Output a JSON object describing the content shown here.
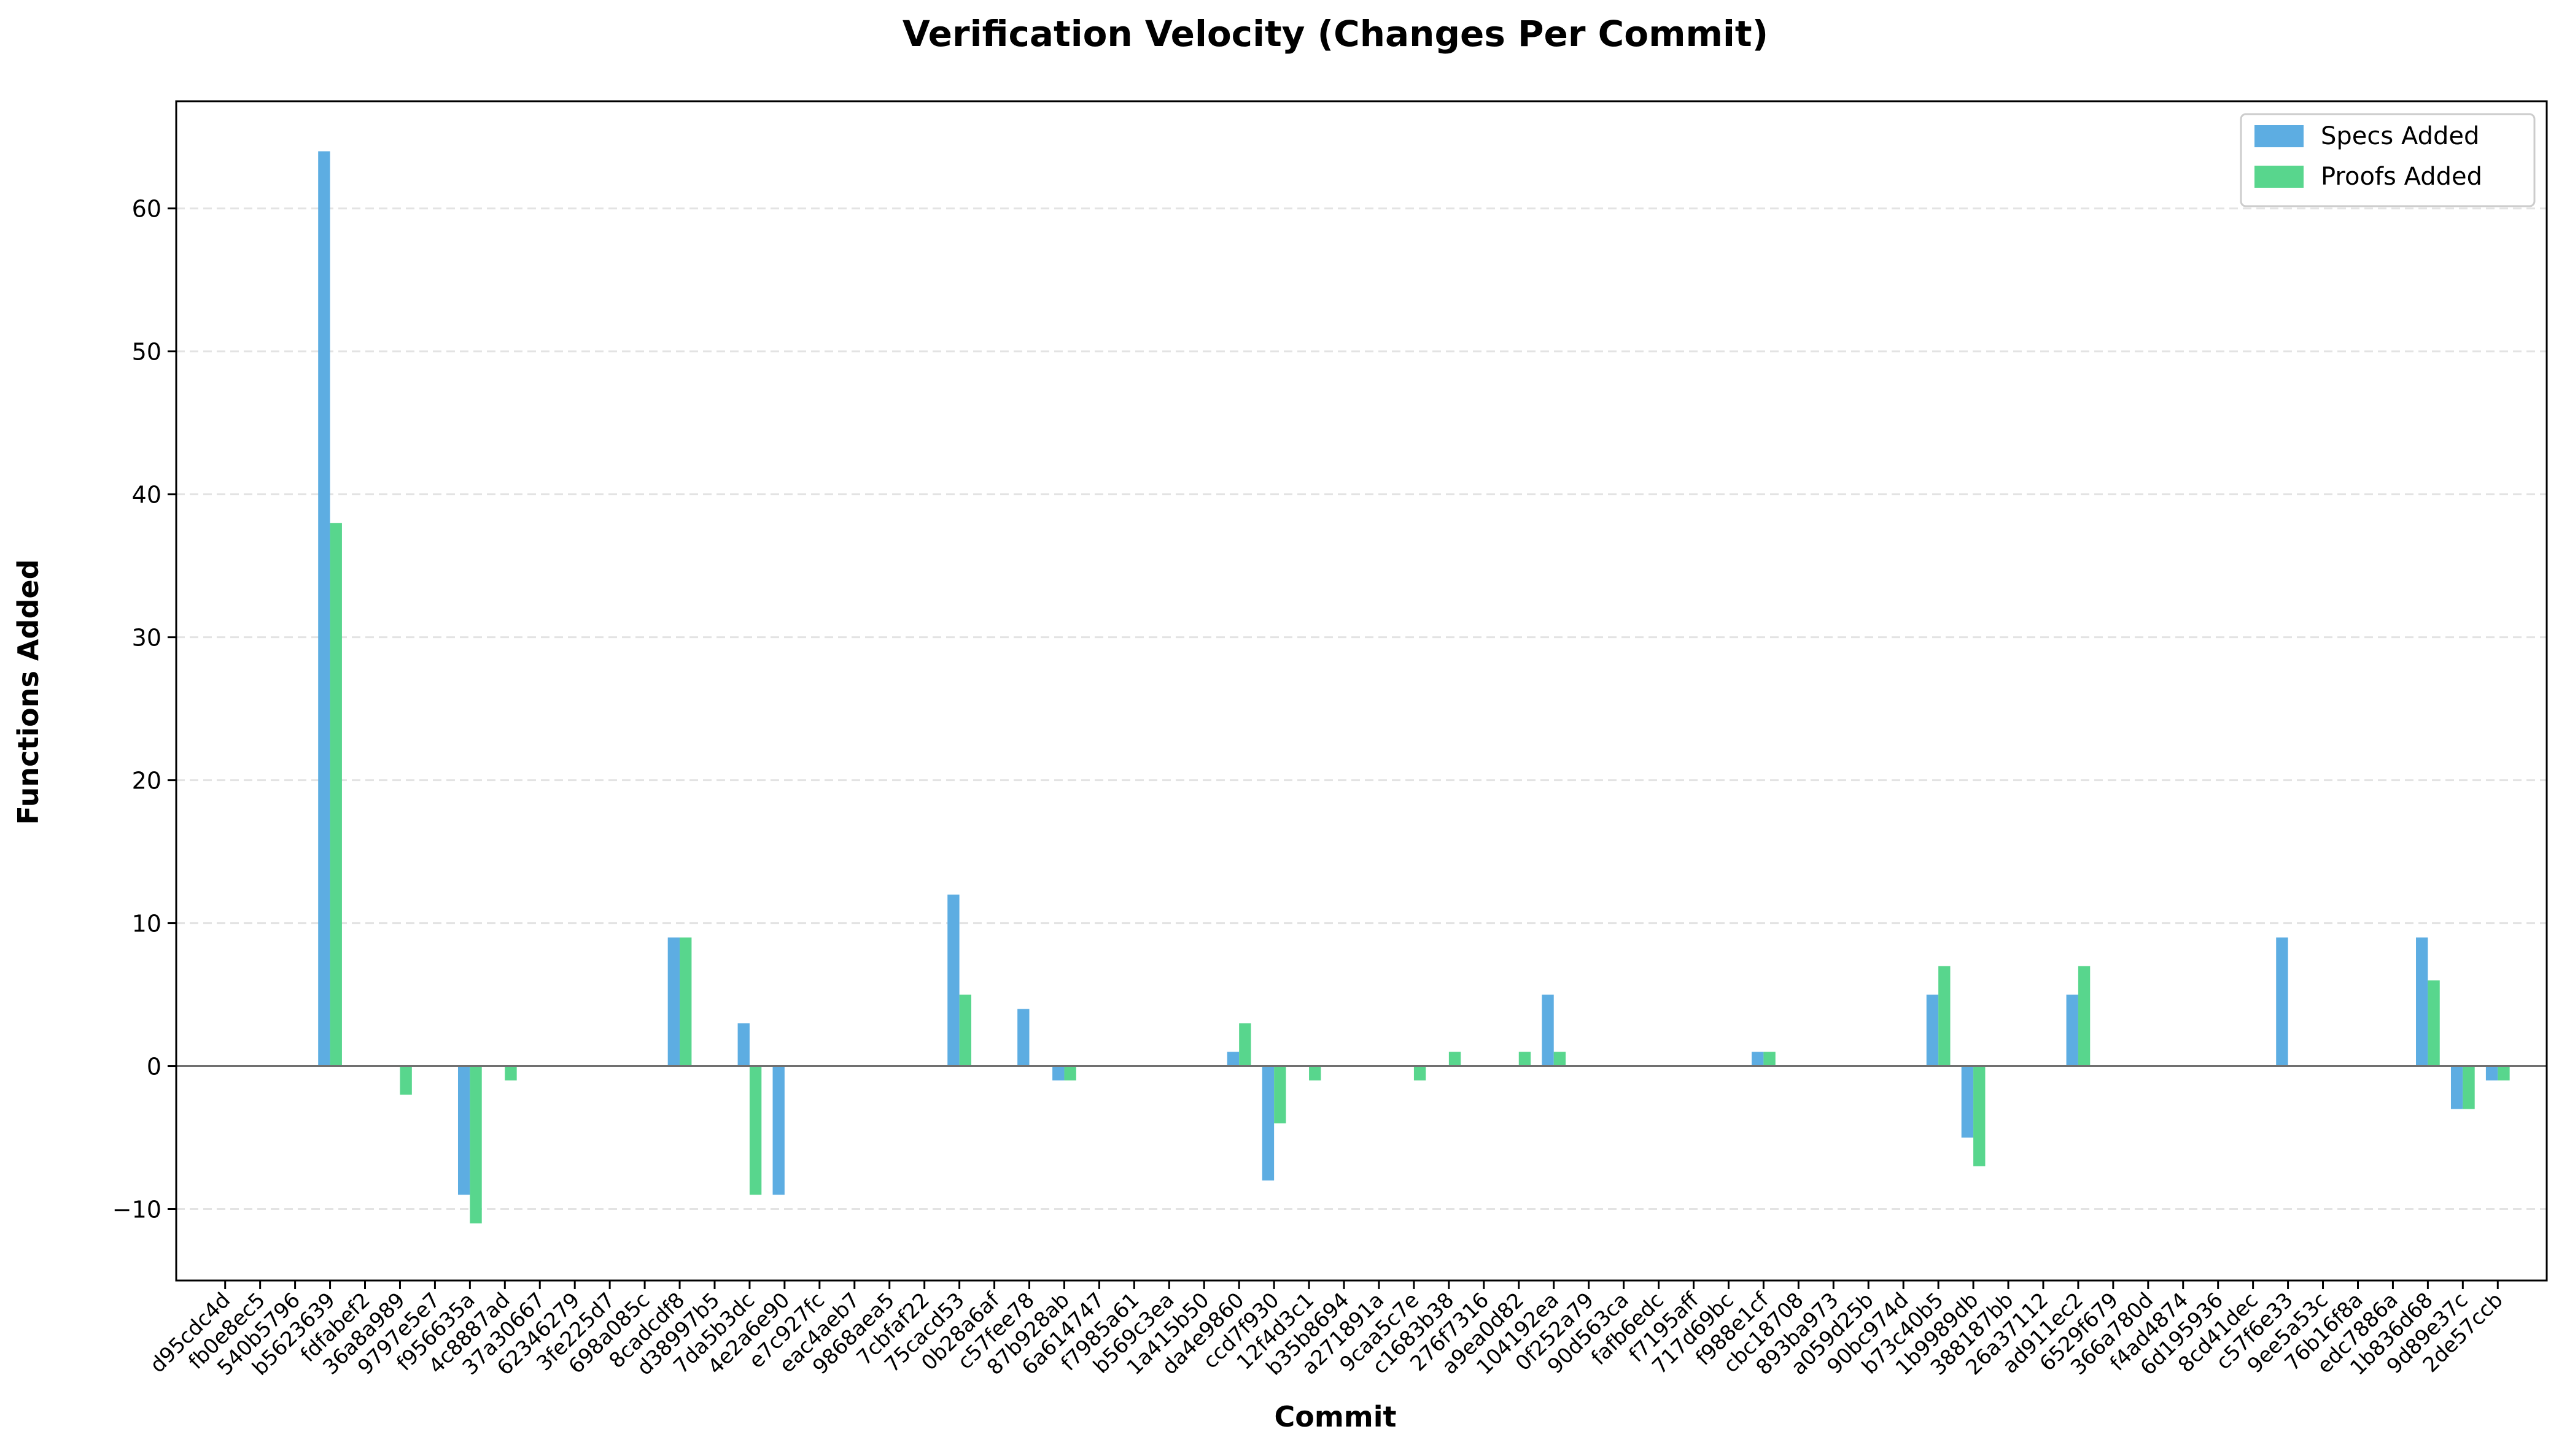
{
  "chart_data": {
    "type": "bar",
    "title": "Verification Velocity (Changes Per Commit)",
    "xlabel": "Commit",
    "ylabel": "Functions Added",
    "ylim": [
      -15,
      67.5
    ],
    "yticks": [
      -10,
      0,
      10,
      20,
      30,
      40,
      50,
      60
    ],
    "ytick_labels": [
      "−10",
      "0",
      "10",
      "20",
      "30",
      "40",
      "50",
      "60"
    ],
    "grid": "y-dashed",
    "legend_position": "top-right",
    "categories": [
      "d95cdc4d",
      "fb0e8ec5",
      "540b5796",
      "b5623639",
      "fdfabef2",
      "36a8a989",
      "9797e5e7",
      "f956635a",
      "4c8887ad",
      "37a30667",
      "62346279",
      "3fe225d7",
      "698a085c",
      "8cadcdf8",
      "d38997b5",
      "7da5b3dc",
      "4e2a6e90",
      "e7c927fc",
      "eac4aeb7",
      "9868aea5",
      "7cbfaf22",
      "75cacd53",
      "0b28a6af",
      "c57fee78",
      "87b928ab",
      "6a614747",
      "f7985a61",
      "b569c3ea",
      "1a415b50",
      "da4e9860",
      "ccd7f930",
      "12f4d3c1",
      "b35b8694",
      "a271891a",
      "9caa5c7e",
      "c1683b38",
      "276f7316",
      "a9ea0d82",
      "104192ea",
      "0f252a79",
      "90d563ca",
      "fafb6edc",
      "f7195aff",
      "717d69bc",
      "f988e1cf",
      "cbc18708",
      "893ba973",
      "a059d25b",
      "90bc974d",
      "b73c40b5",
      "1b9989db",
      "388187bb",
      "26a37112",
      "ad911ec2",
      "6529f679",
      "366a780d",
      "f4ad4874",
      "6d195936",
      "8cd41dec",
      "c57f6e33",
      "9ee5a53c",
      "76b16f8a",
      "edc7886a",
      "1b836d68",
      "9d89e37c",
      "2de57ccb"
    ],
    "series": [
      {
        "name": "Specs Added",
        "color": "#5dade2",
        "values": [
          0,
          0,
          0,
          64,
          0,
          0,
          0,
          -9,
          0,
          0,
          0,
          0,
          0,
          9,
          0,
          3,
          -9,
          0,
          0,
          0,
          0,
          12,
          0,
          4,
          -1,
          0,
          0,
          0,
          0,
          1,
          -8,
          0,
          0,
          0,
          0,
          0,
          0,
          0,
          5,
          0,
          0,
          0,
          0,
          0,
          1,
          0,
          0,
          0,
          0,
          5,
          -5,
          0,
          0,
          5,
          0,
          0,
          0,
          0,
          0,
          9,
          0,
          0,
          0,
          9,
          -3,
          -1
        ]
      },
      {
        "name": "Proofs Added",
        "color": "#58d68d",
        "values": [
          0,
          0,
          0,
          38,
          0,
          -2,
          0,
          -11,
          -1,
          0,
          0,
          0,
          0,
          9,
          0,
          -9,
          0,
          0,
          0,
          0,
          0,
          5,
          0,
          0,
          -1,
          0,
          0,
          0,
          0,
          3,
          -4,
          -1,
          0,
          0,
          -1,
          1,
          0,
          1,
          1,
          0,
          0,
          0,
          0,
          0,
          1,
          0,
          0,
          0,
          0,
          7,
          -7,
          0,
          0,
          7,
          0,
          0,
          0,
          0,
          0,
          0,
          0,
          0,
          0,
          6,
          -3,
          -1
        ]
      }
    ]
  }
}
